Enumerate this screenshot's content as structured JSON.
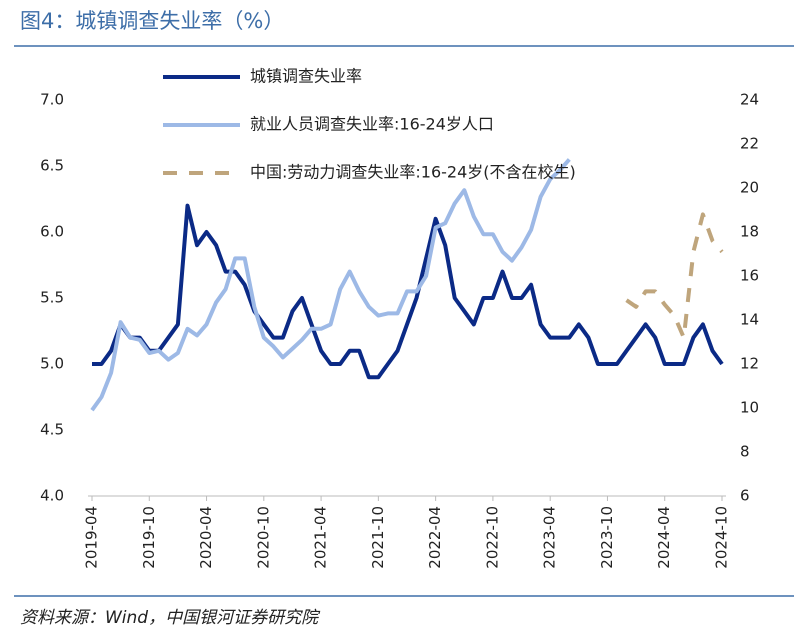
{
  "chart_data": {
    "type": "line",
    "title": "图4：城镇调查失业率（%）",
    "source": "资料来源：Wind，中国银河证券研究院",
    "categories": [
      "2019-04",
      null,
      null,
      null,
      null,
      null,
      "2019-10",
      null,
      null,
      null,
      null,
      null,
      "2020-04",
      null,
      null,
      null,
      null,
      null,
      "2020-10",
      null,
      null,
      null,
      null,
      null,
      "2021-04",
      null,
      null,
      null,
      null,
      null,
      "2021-10",
      null,
      null,
      null,
      null,
      null,
      "2022-04",
      null,
      null,
      null,
      null,
      null,
      "2022-10",
      null,
      null,
      null,
      null,
      null,
      "2023-04",
      null,
      null,
      null,
      null,
      null,
      "2023-10",
      null,
      null,
      null,
      null,
      null,
      "2024-04",
      null,
      null,
      null,
      null,
      null,
      "2024-10"
    ],
    "series": [
      {
        "name": "城镇调查失业率",
        "color": "#0b2a86",
        "style": "solid",
        "values": [
          5.0,
          5.0,
          5.1,
          5.3,
          5.2,
          5.2,
          5.1,
          5.1,
          5.2,
          5.3,
          6.2,
          5.9,
          6.0,
          5.9,
          5.7,
          5.7,
          5.6,
          5.4,
          5.3,
          5.2,
          5.2,
          5.4,
          5.5,
          5.3,
          5.1,
          5.0,
          5.0,
          5.1,
          5.1,
          4.9,
          4.9,
          5.0,
          5.1,
          5.3,
          5.5,
          5.8,
          6.1,
          5.9,
          5.5,
          5.4,
          5.3,
          5.5,
          5.5,
          5.7,
          5.5,
          5.5,
          5.6,
          5.3,
          5.2,
          5.2,
          5.2,
          5.3,
          5.2,
          5.0,
          5.0,
          5.0,
          5.1,
          5.2,
          5.3,
          5.2,
          5.0,
          5.0,
          5.0,
          5.2,
          5.3,
          5.1,
          5.0
        ]
      },
      {
        "name": "就业人员调查失业率:16-24岁人口",
        "color": "#9db9e6",
        "style": "solid",
        "axis": "y2",
        "values": [
          9.9,
          10.5,
          11.6,
          13.9,
          13.2,
          13.1,
          12.5,
          12.6,
          12.2,
          12.5,
          13.6,
          13.3,
          13.8,
          14.8,
          15.4,
          16.8,
          16.8,
          14.6,
          13.2,
          12.8,
          12.3,
          12.7,
          13.1,
          13.6,
          13.6,
          13.8,
          15.4,
          16.2,
          15.3,
          14.6,
          14.2,
          14.3,
          14.3,
          15.3,
          15.3,
          16.0,
          18.2,
          18.4,
          19.3,
          19.9,
          18.7,
          17.9,
          17.9,
          17.1,
          16.7,
          17.3,
          18.1,
          19.6,
          20.4,
          20.8,
          21.3,
          null,
          null,
          null,
          null,
          null,
          null,
          null,
          null,
          null,
          null,
          null,
          null,
          null,
          null,
          null,
          null
        ]
      },
      {
        "name": "中国:劳动力调查失业率:16-24岁(不含在校生)",
        "color": "#bfa57c",
        "style": "dashed",
        "axis": "y2",
        "values": [
          null,
          null,
          null,
          null,
          null,
          null,
          null,
          null,
          null,
          null,
          null,
          null,
          null,
          null,
          null,
          null,
          null,
          null,
          null,
          null,
          null,
          null,
          null,
          null,
          null,
          null,
          null,
          null,
          null,
          null,
          null,
          null,
          null,
          null,
          null,
          null,
          null,
          null,
          null,
          null,
          null,
          null,
          null,
          null,
          null,
          null,
          null,
          null,
          null,
          null,
          null,
          null,
          null,
          null,
          null,
          null,
          14.9,
          14.6,
          15.3,
          15.3,
          14.7,
          14.2,
          13.2,
          17.1,
          18.8,
          17.6,
          17.1
        ]
      }
    ],
    "ylim": [
      4.0,
      7.0
    ],
    "yticks": [
      {
        "value": 4.0,
        "label": "4.0"
      },
      4.5,
      {
        "value": 5.0,
        "label": "5.0"
      },
      5.5,
      {
        "value": 6.0,
        "label": "6.0"
      },
      6.5,
      {
        "value": 7.0,
        "label": "7.0"
      }
    ],
    "y2lim": [
      6,
      24
    ],
    "y2ticks": [
      6,
      8,
      10,
      12,
      14,
      16,
      18,
      20,
      22,
      24
    ],
    "grid": false
  }
}
